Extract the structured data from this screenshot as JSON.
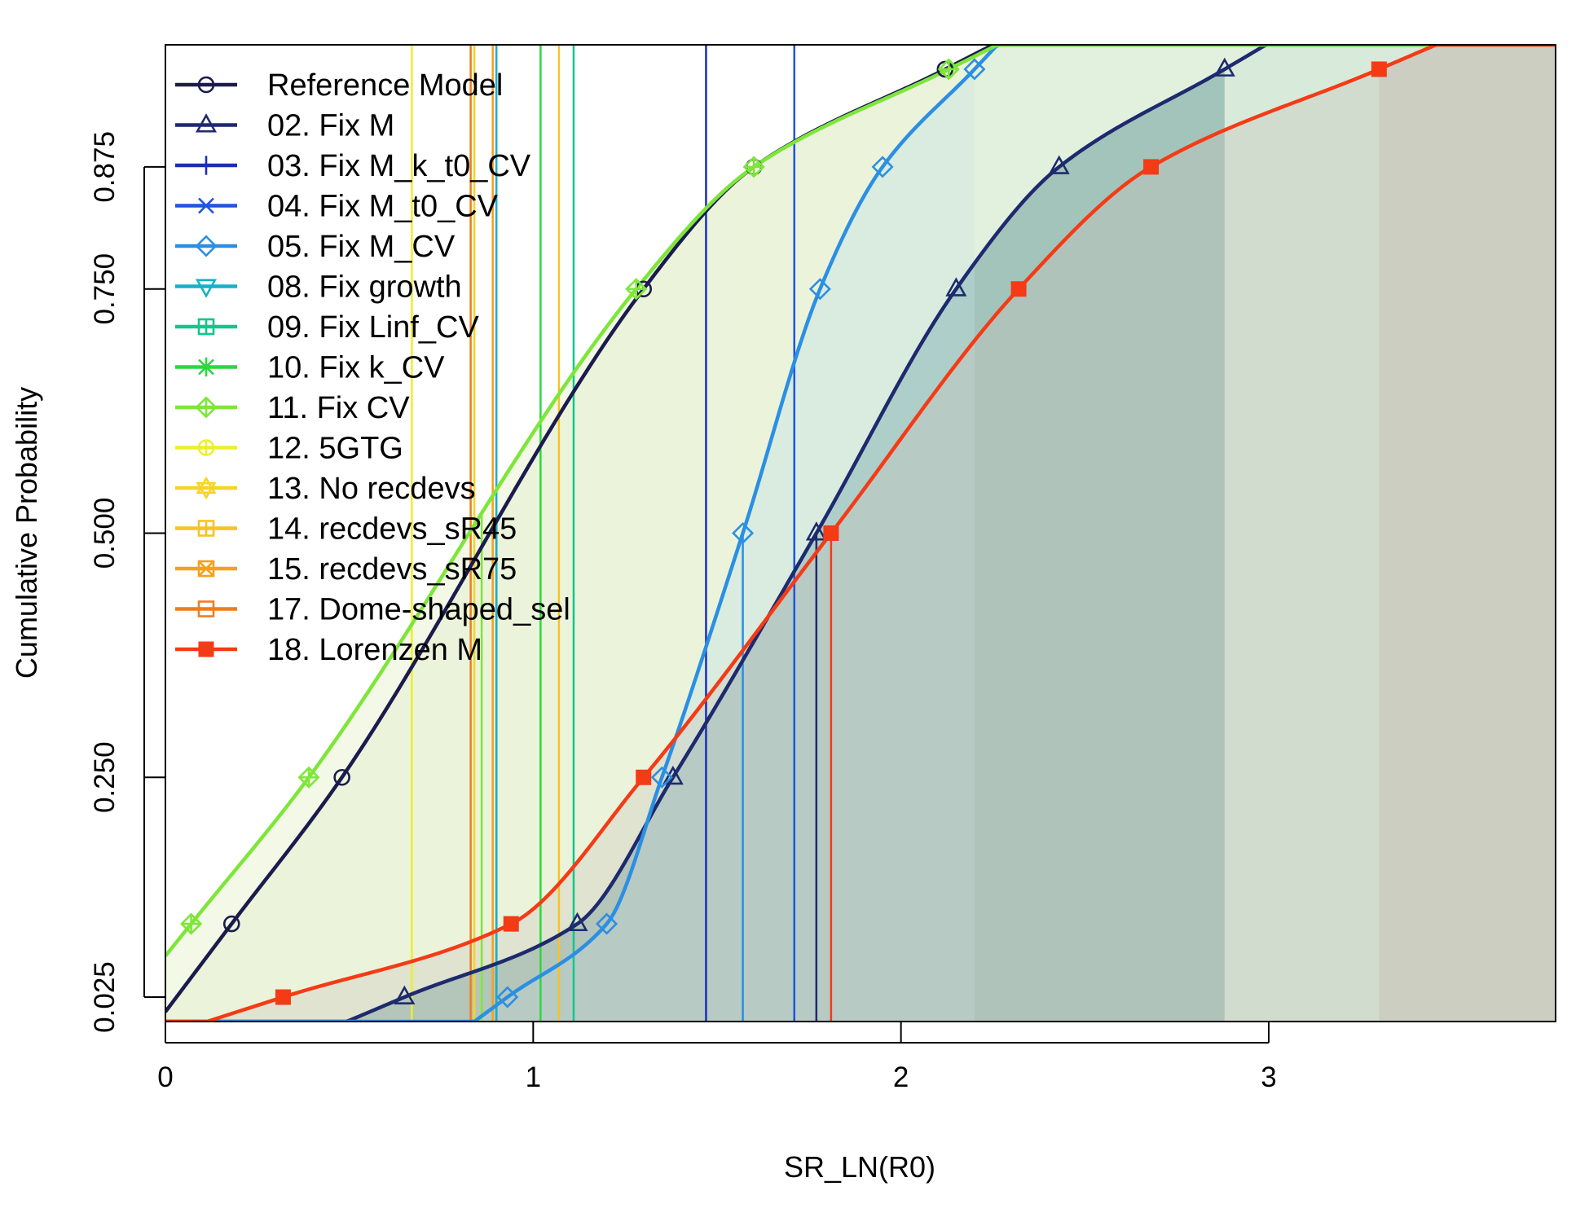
{
  "chart_data": {
    "type": "line",
    "xlabel": "SR_LN(R0)",
    "ylabel": "Cumulative Probability",
    "xlim": [
      0,
      3.78
    ],
    "ylim": [
      0,
      1
    ],
    "x_ticks": [
      0,
      1,
      2,
      3
    ],
    "x_tick_labels": [
      "0",
      "1",
      "2",
      "3"
    ],
    "y_ticks": [
      0.025,
      0.25,
      0.5,
      0.75,
      0.875
    ],
    "y_tick_labels": [
      "0.025",
      "0.250",
      "0.500",
      "0.750",
      "0.875"
    ],
    "legend_position": "top-left",
    "series": [
      {
        "name": "Reference Model",
        "color": "#1b1b4d",
        "symbol": "circle",
        "shade": "#d8e3c8",
        "shade_start": 0,
        "median": 0.9,
        "marks": [
          [
            0.18,
            0.1
          ],
          [
            0.48,
            0.25
          ],
          [
            1.3,
            0.75
          ],
          [
            1.6,
            0.875
          ],
          [
            2.12,
            0.975
          ]
        ]
      },
      {
        "name": "02. Fix M",
        "color": "#1e2a6e",
        "symbol": "triangle",
        "shade": "#2e6f7a",
        "shade_start": 2.88,
        "median": 1.77,
        "marks": [
          [
            0.65,
            0.025
          ],
          [
            1.12,
            0.1
          ],
          [
            1.38,
            0.25
          ],
          [
            1.77,
            0.5
          ],
          [
            2.15,
            0.75
          ],
          [
            2.43,
            0.875
          ],
          [
            2.88,
            0.975
          ]
        ]
      },
      {
        "name": "03. Fix M_k_t0_CV",
        "color": "#1b2fb5",
        "symbol": "plus",
        "median": 1.47
      },
      {
        "name": "04. Fix M_t0_CV",
        "color": "#1f55dc",
        "symbol": "x",
        "median": 1.71
      },
      {
        "name": "05. Fix M_CV",
        "color": "#2b8fe3",
        "symbol": "diamond",
        "shade": "#b7dde8",
        "shade_start": 2.2,
        "median": 1.57,
        "marks": [
          [
            0.93,
            0.025
          ],
          [
            1.2,
            0.1
          ],
          [
            1.35,
            0.25
          ],
          [
            1.57,
            0.5
          ],
          [
            1.78,
            0.75
          ],
          [
            1.95,
            0.875
          ],
          [
            2.2,
            0.975
          ]
        ]
      },
      {
        "name": "08. Fix growth",
        "color": "#17b0c8",
        "symbol": "triangle-down",
        "median": 0.9
      },
      {
        "name": "09. Fix Linf_CV",
        "color": "#12c68c",
        "symbol": "square-plus",
        "median": 1.11
      },
      {
        "name": "10. Fix k_CV",
        "color": "#2ad840",
        "symbol": "star",
        "median": 1.02
      },
      {
        "name": "11. Fix CV",
        "color": "#7ee63a",
        "symbol": "diamond-plus",
        "shade": "#eef7dc",
        "shade_start": 0,
        "median": 0.86,
        "marks": [
          [
            0.07,
            0.1
          ],
          [
            0.39,
            0.25
          ],
          [
            1.28,
            0.75
          ],
          [
            1.6,
            0.875
          ],
          [
            2.13,
            0.975
          ]
        ]
      },
      {
        "name": "12. 5GTG",
        "color": "#ecf02a",
        "symbol": "circle-plus",
        "median": 0.67
      },
      {
        "name": "13. No recdevs",
        "color": "#f5d523",
        "symbol": "star-of-david",
        "median": 0.84
      },
      {
        "name": "14. recdevs_sR45",
        "color": "#f6c227",
        "symbol": "square-plus",
        "median": 1.07
      },
      {
        "name": "15. recdevs_sR75",
        "color": "#f5a01e",
        "symbol": "square-x",
        "median": 0.89
      },
      {
        "name": "17. Dome-shaped_sel",
        "color": "#ee7d1e",
        "symbol": "square-open",
        "median": 0.83
      },
      {
        "name": "18. Lorenzen M",
        "color": "#f43b16",
        "symbol": "square-filled",
        "shade": "#c8c3b9",
        "shade_start": 3.3,
        "median": 1.81,
        "marks": [
          [
            0.32,
            0.025
          ],
          [
            0.94,
            0.1
          ],
          [
            1.3,
            0.25
          ],
          [
            1.81,
            0.5
          ],
          [
            2.32,
            0.75
          ],
          [
            2.68,
            0.875
          ],
          [
            3.3,
            0.975
          ]
        ]
      }
    ]
  }
}
